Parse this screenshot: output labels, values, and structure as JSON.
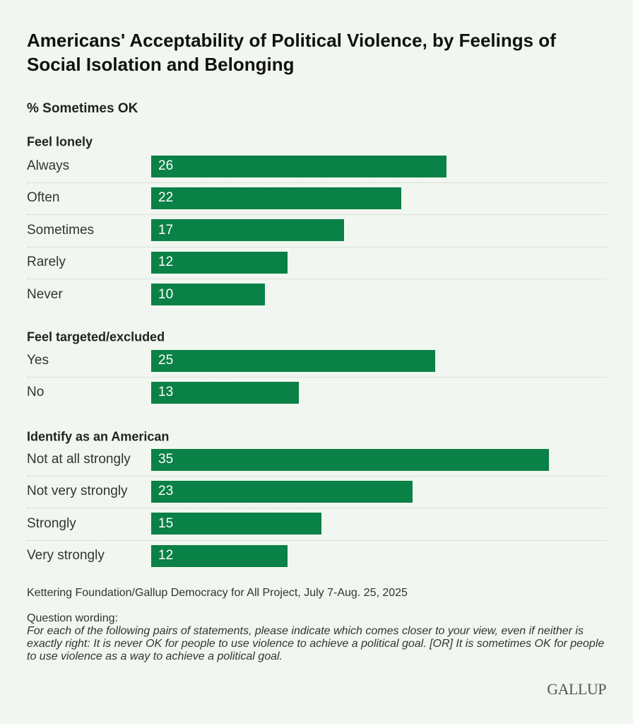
{
  "chart_data": {
    "type": "bar",
    "orientation": "horizontal",
    "title": "Americans' Acceptability of Political Violence, by Feelings of Social Isolation and Belonging",
    "subtitle": "% Sometimes OK",
    "xlim": [
      0,
      35
    ],
    "grid": false,
    "bar_color": "#0a8146",
    "groups": [
      {
        "name": "Feel lonely",
        "categories": [
          "Always",
          "Often",
          "Sometimes",
          "Rarely",
          "Never"
        ],
        "values": [
          26,
          22,
          17,
          12,
          10
        ]
      },
      {
        "name": "Feel targeted/excluded",
        "categories": [
          "Yes",
          "No"
        ],
        "values": [
          25,
          13
        ]
      },
      {
        "name": "Identify as an American",
        "categories": [
          "Not at all strongly",
          "Not very strongly",
          "Strongly",
          "Very strongly"
        ],
        "values": [
          35,
          23,
          15,
          12
        ]
      }
    ]
  },
  "footer": {
    "source": "Kettering Foundation/Gallup Democracy for All Project, July 7-Aug. 25, 2025",
    "question_label": "Question wording:",
    "question_text": "For each of the following pairs of statements, please indicate which comes closer to your view, even if neither is exactly right: It is never OK for people to use violence to achieve a political goal. [OR] It is sometimes OK for people to use violence as a way to achieve a political goal.",
    "logo": "GALLUP"
  },
  "colors": {
    "background": "#f1f7f0",
    "bar": "#0a8146"
  }
}
